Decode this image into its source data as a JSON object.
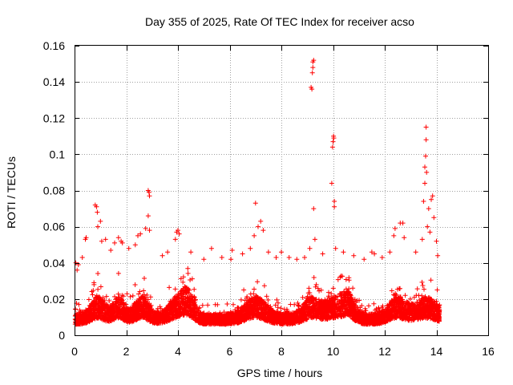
{
  "chart_data": {
    "type": "scatter",
    "title": "Day 355 of 2025, Rate Of TEC Index for receiver acso",
    "xlabel": "GPS time / hours",
    "ylabel": "ROTI / TECUs",
    "xlim": [
      0,
      16
    ],
    "ylim": [
      0,
      0.16
    ],
    "xticks": [
      0,
      2,
      4,
      6,
      8,
      10,
      12,
      14,
      16
    ],
    "xtick_labels": [
      "0",
      "2",
      "4",
      "6",
      "8",
      "10",
      "12",
      "14",
      "16"
    ],
    "yticks": [
      0,
      0.02,
      0.04,
      0.06,
      0.08,
      0.1,
      0.12,
      0.14,
      0.16
    ],
    "ytick_labels": [
      "0",
      "0.02",
      "0.04",
      "0.06",
      "0.08",
      "0.1",
      "0.12",
      "0.14",
      "0.16"
    ],
    "grid": true,
    "marker": "plus",
    "color": "#ff0000",
    "series": [
      {
        "name": "ROTI",
        "notes": "dense scatter of several thousand samples from 0 to ~14.1 h; values below are the notable excursions read from the plot",
        "points": [
          [
            0.05,
            0.04
          ],
          [
            0.1,
            0.036
          ],
          [
            0.15,
            0.039
          ],
          [
            0.3,
            0.043
          ],
          [
            0.42,
            0.053
          ],
          [
            0.45,
            0.054
          ],
          [
            0.8,
            0.072
          ],
          [
            0.85,
            0.071
          ],
          [
            0.88,
            0.068
          ],
          [
            0.9,
            0.06
          ],
          [
            1.0,
            0.063
          ],
          [
            1.05,
            0.052
          ],
          [
            1.2,
            0.053
          ],
          [
            1.4,
            0.047
          ],
          [
            1.55,
            0.051
          ],
          [
            1.7,
            0.054
          ],
          [
            1.8,
            0.052
          ],
          [
            1.85,
            0.051
          ],
          [
            2.1,
            0.048
          ],
          [
            2.35,
            0.05
          ],
          [
            2.45,
            0.055
          ],
          [
            2.55,
            0.056
          ],
          [
            2.75,
            0.059
          ],
          [
            2.85,
            0.08
          ],
          [
            2.88,
            0.079
          ],
          [
            2.9,
            0.077
          ],
          [
            2.85,
            0.066
          ],
          [
            2.9,
            0.058
          ],
          [
            3.4,
            0.044
          ],
          [
            3.6,
            0.046
          ],
          [
            3.9,
            0.053
          ],
          [
            3.95,
            0.057
          ],
          [
            4.0,
            0.058
          ],
          [
            4.05,
            0.056
          ],
          [
            4.5,
            0.046
          ],
          [
            5.0,
            0.042
          ],
          [
            5.3,
            0.048
          ],
          [
            5.7,
            0.043
          ],
          [
            6.05,
            0.042
          ],
          [
            6.1,
            0.047
          ],
          [
            6.5,
            0.045
          ],
          [
            6.8,
            0.048
          ],
          [
            6.95,
            0.055
          ],
          [
            7.0,
            0.073
          ],
          [
            7.1,
            0.06
          ],
          [
            7.2,
            0.063
          ],
          [
            7.3,
            0.058
          ],
          [
            7.5,
            0.046
          ],
          [
            7.8,
            0.043
          ],
          [
            8.0,
            0.046
          ],
          [
            8.3,
            0.043
          ],
          [
            8.6,
            0.042
          ],
          [
            8.9,
            0.043
          ],
          [
            9.1,
            0.048
          ],
          [
            9.15,
            0.137
          ],
          [
            9.18,
            0.136
          ],
          [
            9.2,
            0.145
          ],
          [
            9.22,
            0.148
          ],
          [
            9.22,
            0.151
          ],
          [
            9.25,
            0.152
          ],
          [
            9.25,
            0.07
          ],
          [
            9.3,
            0.053
          ],
          [
            9.6,
            0.045
          ],
          [
            9.95,
            0.084
          ],
          [
            9.98,
            0.104
          ],
          [
            10.0,
            0.107
          ],
          [
            10.02,
            0.11
          ],
          [
            10.03,
            0.109
          ],
          [
            10.05,
            0.074
          ],
          [
            10.05,
            0.071
          ],
          [
            10.1,
            0.048
          ],
          [
            10.4,
            0.046
          ],
          [
            10.8,
            0.044
          ],
          [
            11.2,
            0.042
          ],
          [
            11.5,
            0.046
          ],
          [
            11.6,
            0.045
          ],
          [
            11.9,
            0.043
          ],
          [
            12.2,
            0.046
          ],
          [
            12.35,
            0.055
          ],
          [
            12.4,
            0.059
          ],
          [
            12.6,
            0.062
          ],
          [
            12.7,
            0.062
          ],
          [
            12.75,
            0.054
          ],
          [
            13.2,
            0.046
          ],
          [
            13.45,
            0.053
          ],
          [
            13.5,
            0.074
          ],
          [
            13.55,
            0.084
          ],
          [
            13.55,
            0.093
          ],
          [
            13.58,
            0.099
          ],
          [
            13.6,
            0.115
          ],
          [
            13.6,
            0.108
          ],
          [
            13.62,
            0.09
          ],
          [
            13.65,
            0.06
          ],
          [
            13.7,
            0.07
          ],
          [
            13.75,
            0.057
          ],
          [
            13.8,
            0.075
          ],
          [
            13.85,
            0.077
          ],
          [
            13.9,
            0.065
          ],
          [
            14.0,
            0.052
          ],
          [
            14.05,
            0.044
          ]
        ]
      }
    ]
  }
}
